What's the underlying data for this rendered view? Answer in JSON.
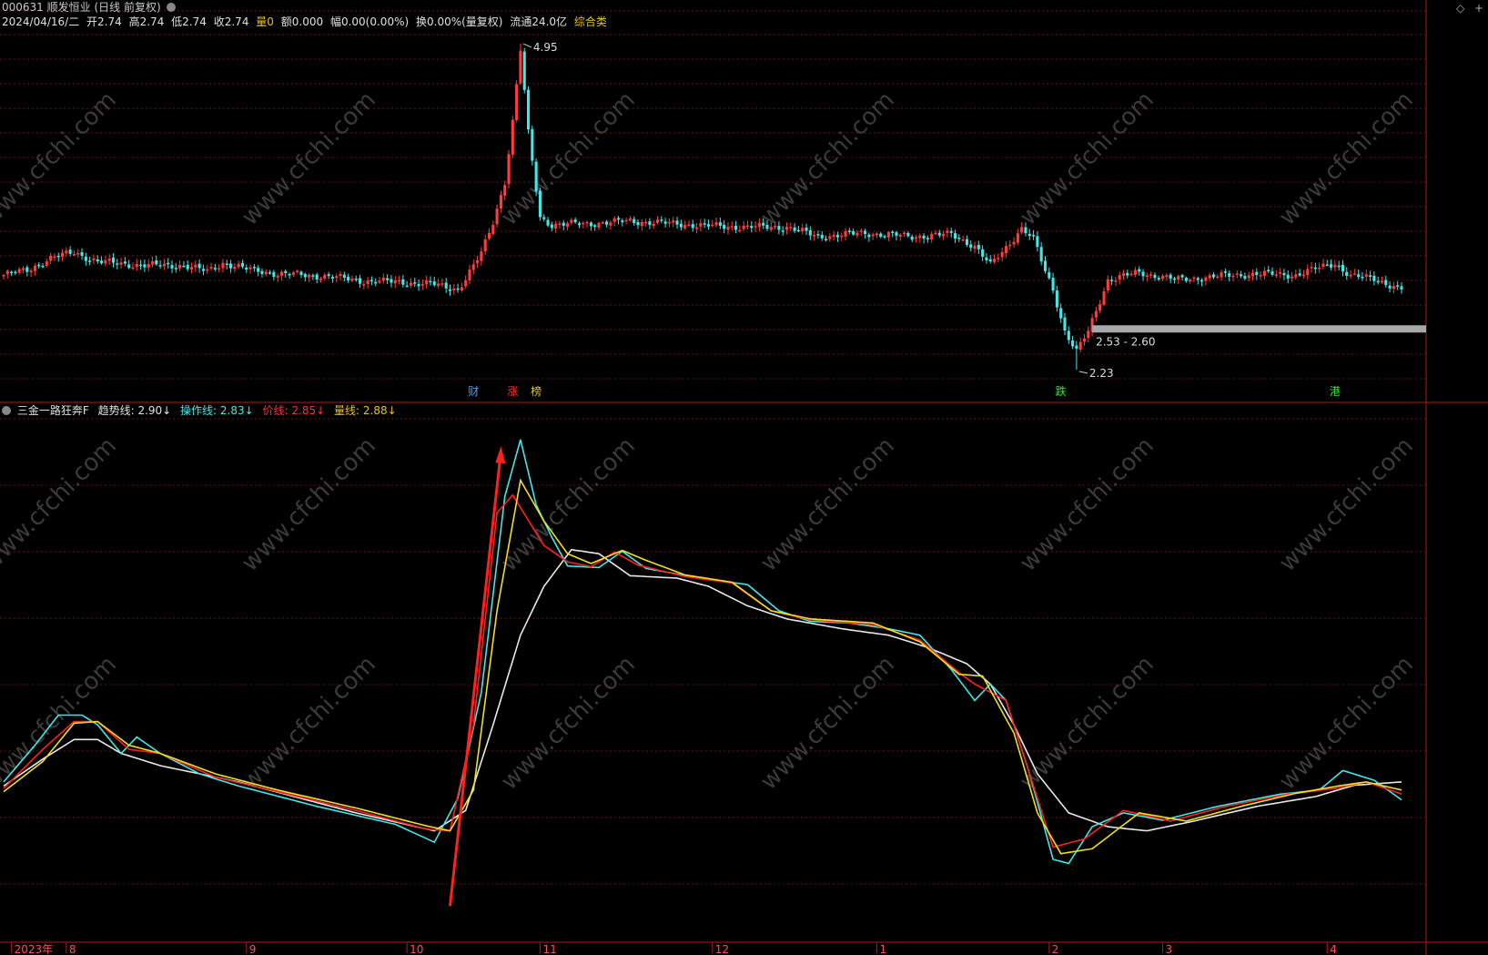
{
  "header": {
    "code": "000631",
    "name": "顺发恒业",
    "mode": "(日线 前复权)",
    "date": "2024/04/16/二",
    "open": "开2.74",
    "high": "高2.74",
    "low": "低2.74",
    "close": "收2.74",
    "volume": "量0",
    "amount": "额0.000",
    "change": "幅0.00(0.00%)",
    "turnover": "换0.00%(量复权)",
    "float": "流通24.0亿",
    "category": "综合类"
  },
  "indicator": {
    "name": "三金一路狂奔F",
    "trend_label": "趋势线:",
    "trend_value": "2.90",
    "op_label": "操作线:",
    "op_value": "2.83",
    "price_label": "价线:",
    "price_value": "2.85",
    "vol_label": "量线:",
    "vol_value": "2.88",
    "arrow": "↓"
  },
  "chart_data": {
    "type": "candlestick",
    "high_label": "4.95",
    "low_label": "2.23",
    "range_label": "2.53 - 2.60",
    "event_markers": [
      {
        "text": "财",
        "color": "#4aa0ff",
        "bar": 120
      },
      {
        "text": "涨",
        "color": "#ff3030",
        "bar": 130
      },
      {
        "text": "榜",
        "color": "#e8c020",
        "bar": 136
      },
      {
        "text": "跌",
        "color": "#40e040",
        "bar": 270
      },
      {
        "text": "港",
        "color": "#40e040",
        "bar": 340
      }
    ],
    "x_labels": [
      {
        "text": "2023年",
        "bar": 2
      },
      {
        "text": "8",
        "bar": 16
      },
      {
        "text": "9",
        "bar": 62
      },
      {
        "text": "10",
        "bar": 103
      },
      {
        "text": "11",
        "bar": 137
      },
      {
        "text": "12",
        "bar": 181
      },
      {
        "text": "1",
        "bar": 223
      },
      {
        "text": "2",
        "bar": 267
      },
      {
        "text": "3",
        "bar": 296
      },
      {
        "text": "4",
        "bar": 338
      }
    ],
    "bars": 358,
    "keyframes": [
      [
        0,
        3.02
      ],
      [
        6,
        3.06
      ],
      [
        12,
        3.16
      ],
      [
        18,
        3.21
      ],
      [
        24,
        3.13
      ],
      [
        36,
        3.1
      ],
      [
        46,
        3.1
      ],
      [
        52,
        3.05
      ],
      [
        56,
        3.12
      ],
      [
        62,
        3.07
      ],
      [
        70,
        3.03
      ],
      [
        82,
        3.01
      ],
      [
        92,
        2.97
      ],
      [
        102,
        2.96
      ],
      [
        110,
        2.94
      ],
      [
        116,
        2.9
      ],
      [
        118,
        2.99
      ],
      [
        122,
        3.2
      ],
      [
        125,
        3.46
      ],
      [
        128,
        3.8
      ],
      [
        130,
        4.3
      ],
      [
        132,
        4.9
      ],
      [
        134,
        4.2
      ],
      [
        137,
        3.5
      ],
      [
        140,
        3.44
      ],
      [
        150,
        3.45
      ],
      [
        160,
        3.47
      ],
      [
        170,
        3.45
      ],
      [
        180,
        3.43
      ],
      [
        190,
        3.42
      ],
      [
        200,
        3.42
      ],
      [
        208,
        3.34
      ],
      [
        220,
        3.37
      ],
      [
        232,
        3.34
      ],
      [
        242,
        3.36
      ],
      [
        248,
        3.26
      ],
      [
        252,
        3.1
      ],
      [
        256,
        3.25
      ],
      [
        260,
        3.41
      ],
      [
        263,
        3.32
      ],
      [
        266,
        3.05
      ],
      [
        268,
        2.9
      ],
      [
        271,
        2.55
      ],
      [
        274,
        2.38
      ],
      [
        277,
        2.55
      ],
      [
        282,
        2.98
      ],
      [
        290,
        3.04
      ],
      [
        300,
        2.98
      ],
      [
        310,
        3.01
      ],
      [
        320,
        3.03
      ],
      [
        330,
        3.02
      ],
      [
        336,
        3.08
      ],
      [
        340,
        3.12
      ],
      [
        344,
        3.01
      ],
      [
        350,
        2.99
      ],
      [
        357,
        2.9
      ]
    ],
    "indicator_series": [
      {
        "name": "趋势线",
        "color": "#e8e8e8",
        "values": [
          [
            0,
            2.05
          ],
          [
            10,
            2.38
          ],
          [
            18,
            2.62
          ],
          [
            24,
            2.62
          ],
          [
            30,
            2.45
          ],
          [
            40,
            2.3
          ],
          [
            60,
            2.1
          ],
          [
            90,
            1.72
          ],
          [
            110,
            1.5
          ],
          [
            118,
            1.75
          ],
          [
            125,
            2.8
          ],
          [
            132,
            3.9
          ],
          [
            138,
            4.5
          ],
          [
            145,
            4.95
          ],
          [
            152,
            4.9
          ],
          [
            160,
            4.63
          ],
          [
            172,
            4.6
          ],
          [
            180,
            4.5
          ],
          [
            190,
            4.26
          ],
          [
            200,
            4.1
          ],
          [
            214,
            3.98
          ],
          [
            226,
            3.9
          ],
          [
            236,
            3.75
          ],
          [
            246,
            3.55
          ],
          [
            252,
            3.3
          ],
          [
            258,
            2.8
          ],
          [
            264,
            2.2
          ],
          [
            272,
            1.72
          ],
          [
            282,
            1.55
          ],
          [
            292,
            1.5
          ],
          [
            304,
            1.62
          ],
          [
            320,
            1.8
          ],
          [
            335,
            1.92
          ],
          [
            345,
            2.06
          ],
          [
            357,
            2.1
          ]
        ]
      },
      {
        "name": "操作线",
        "color": "#40e8e8",
        "values": [
          [
            0,
            2.1
          ],
          [
            8,
            2.55
          ],
          [
            14,
            2.92
          ],
          [
            20,
            2.92
          ],
          [
            24,
            2.8
          ],
          [
            30,
            2.45
          ],
          [
            34,
            2.65
          ],
          [
            40,
            2.45
          ],
          [
            50,
            2.2
          ],
          [
            60,
            2.05
          ],
          [
            80,
            1.8
          ],
          [
            100,
            1.58
          ],
          [
            110,
            1.36
          ],
          [
            116,
            1.9
          ],
          [
            122,
            3.2
          ],
          [
            128,
            5.6
          ],
          [
            132,
            6.3
          ],
          [
            136,
            5.5
          ],
          [
            140,
            5.1
          ],
          [
            144,
            4.75
          ],
          [
            152,
            4.73
          ],
          [
            158,
            4.93
          ],
          [
            164,
            4.72
          ],
          [
            178,
            4.6
          ],
          [
            190,
            4.52
          ],
          [
            198,
            4.2
          ],
          [
            206,
            4.07
          ],
          [
            216,
            4.05
          ],
          [
            226,
            3.98
          ],
          [
            234,
            3.9
          ],
          [
            242,
            3.48
          ],
          [
            248,
            3.1
          ],
          [
            252,
            3.3
          ],
          [
            256,
            3.1
          ],
          [
            262,
            2.2
          ],
          [
            268,
            1.15
          ],
          [
            272,
            1.1
          ],
          [
            278,
            1.55
          ],
          [
            286,
            1.72
          ],
          [
            296,
            1.63
          ],
          [
            310,
            1.8
          ],
          [
            326,
            1.95
          ],
          [
            336,
            2.0
          ],
          [
            342,
            2.24
          ],
          [
            350,
            2.12
          ],
          [
            357,
            1.88
          ]
        ]
      },
      {
        "name": "价线",
        "color": "#ff2020",
        "values": [
          [
            0,
            2.02
          ],
          [
            10,
            2.5
          ],
          [
            18,
            2.84
          ],
          [
            24,
            2.84
          ],
          [
            32,
            2.5
          ],
          [
            40,
            2.45
          ],
          [
            54,
            2.16
          ],
          [
            70,
            1.98
          ],
          [
            90,
            1.75
          ],
          [
            108,
            1.52
          ],
          [
            114,
            1.5
          ],
          [
            120,
            2.8
          ],
          [
            126,
            5.4
          ],
          [
            130,
            5.62
          ],
          [
            138,
            5.0
          ],
          [
            144,
            4.8
          ],
          [
            150,
            4.74
          ],
          [
            156,
            4.92
          ],
          [
            162,
            4.76
          ],
          [
            174,
            4.62
          ],
          [
            186,
            4.54
          ],
          [
            196,
            4.2
          ],
          [
            206,
            4.09
          ],
          [
            222,
            4.03
          ],
          [
            234,
            3.84
          ],
          [
            244,
            3.44
          ],
          [
            248,
            3.3
          ],
          [
            256,
            3.1
          ],
          [
            262,
            2.2
          ],
          [
            268,
            1.3
          ],
          [
            276,
            1.4
          ],
          [
            286,
            1.75
          ],
          [
            298,
            1.62
          ],
          [
            312,
            1.8
          ],
          [
            328,
            1.95
          ],
          [
            340,
            2.02
          ],
          [
            348,
            2.1
          ],
          [
            357,
            1.95
          ]
        ]
      },
      {
        "name": "量线",
        "color": "#f0e020",
        "values": [
          [
            0,
            1.98
          ],
          [
            10,
            2.35
          ],
          [
            18,
            2.82
          ],
          [
            24,
            2.84
          ],
          [
            32,
            2.55
          ],
          [
            40,
            2.45
          ],
          [
            54,
            2.2
          ],
          [
            70,
            2.0
          ],
          [
            90,
            1.78
          ],
          [
            108,
            1.56
          ],
          [
            114,
            1.5
          ],
          [
            120,
            2.0
          ],
          [
            126,
            4.2
          ],
          [
            132,
            5.8
          ],
          [
            138,
            5.3
          ],
          [
            144,
            4.9
          ],
          [
            150,
            4.78
          ],
          [
            158,
            4.94
          ],
          [
            164,
            4.82
          ],
          [
            174,
            4.64
          ],
          [
            186,
            4.55
          ],
          [
            196,
            4.2
          ],
          [
            206,
            4.1
          ],
          [
            222,
            4.05
          ],
          [
            234,
            3.82
          ],
          [
            244,
            3.42
          ],
          [
            250,
            3.4
          ],
          [
            258,
            2.7
          ],
          [
            264,
            1.72
          ],
          [
            270,
            1.22
          ],
          [
            278,
            1.28
          ],
          [
            290,
            1.72
          ],
          [
            302,
            1.62
          ],
          [
            316,
            1.8
          ],
          [
            330,
            1.96
          ],
          [
            342,
            2.06
          ],
          [
            348,
            2.1
          ],
          [
            357,
            2.0
          ]
        ]
      }
    ]
  },
  "colors": {
    "up": "#ff3b3b",
    "down": "#40e8e8",
    "grid": "#6e1010",
    "background": "#000000"
  }
}
